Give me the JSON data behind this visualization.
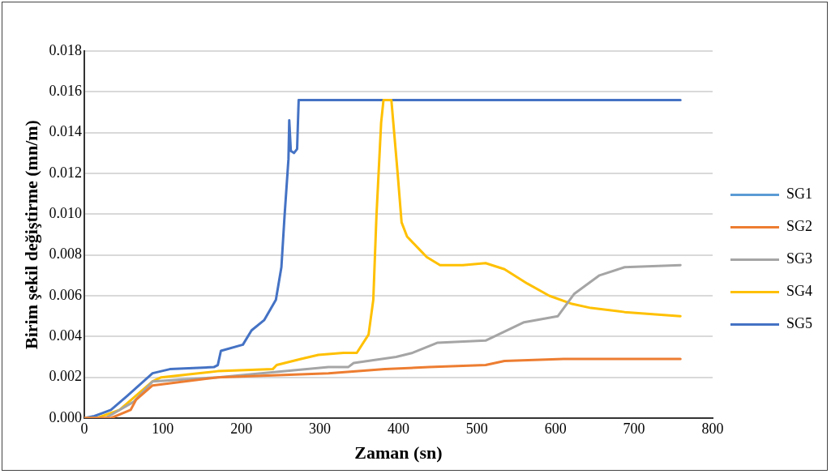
{
  "chart_data": {
    "type": "line",
    "xlabel": "Zaman (sn)",
    "ylabel": "Birim şekil değiştirme (mn/m)",
    "xlim": [
      0,
      800
    ],
    "xticks": [
      0,
      100,
      200,
      300,
      400,
      500,
      600,
      700,
      800
    ],
    "ylim": [
      0,
      0.018
    ],
    "yticks": [
      {
        "value": 0,
        "label": "0.000"
      },
      {
        "value": 0.002,
        "label": "0.002"
      },
      {
        "value": 0.004,
        "label": "0.004"
      },
      {
        "value": 0.006,
        "label": "0.006"
      },
      {
        "value": 0.008,
        "label": "0.008"
      },
      {
        "value": 0.01,
        "label": "0.010"
      },
      {
        "value": 0.012,
        "label": "0.012"
      },
      {
        "value": 0.014,
        "label": "0.014"
      },
      {
        "value": 0.016,
        "label": "0.016"
      },
      {
        "value": 0.018,
        "label": "0.018"
      }
    ],
    "grid": "y",
    "legend": "right",
    "marker": "none",
    "line_style": "solid",
    "series": [
      {
        "name": "SG1",
        "color": "#5b9bd5"
      },
      {
        "name": "SG2",
        "color": "#ed7d31",
        "x": [
          0,
          34,
          59,
          66,
          87,
          170,
          311,
          383,
          439,
          511,
          535,
          610,
          759
        ],
        "values": [
          0,
          0,
          0.0004,
          0.0009,
          0.0016,
          0.002,
          0.0022,
          0.0024,
          0.0025,
          0.0026,
          0.0028,
          0.0029,
          0.0029
        ]
      },
      {
        "name": "SG3",
        "color": "#a5a5a5",
        "x": [
          0,
          27,
          63,
          87,
          170,
          311,
          336,
          343,
          397,
          418,
          450,
          511,
          560,
          603,
          624,
          656,
          688,
          759
        ],
        "values": [
          0,
          0,
          0.0008,
          0.0018,
          0.002,
          0.0025,
          0.0025,
          0.0027,
          0.003,
          0.0032,
          0.0037,
          0.0038,
          0.0047,
          0.005,
          0.0061,
          0.007,
          0.0074,
          0.0075
        ]
      },
      {
        "name": "SG4",
        "color": "#ffc000",
        "x": [
          0,
          16,
          45,
          87,
          98,
          170,
          240,
          245,
          276,
          298,
          330,
          347,
          362,
          368,
          372,
          378,
          381,
          391,
          399,
          404,
          411,
          426,
          436,
          453,
          482,
          511,
          535,
          564,
          592,
          621,
          645,
          688,
          759
        ],
        "values": [
          0,
          0,
          0.0004,
          0.0018,
          0.002,
          0.0023,
          0.0024,
          0.0026,
          0.0029,
          0.0031,
          0.0032,
          0.0032,
          0.0041,
          0.0058,
          0.0099,
          0.0145,
          0.0156,
          0.0156,
          0.012,
          0.0096,
          0.0089,
          0.0083,
          0.0079,
          0.0075,
          0.0075,
          0.0076,
          0.0073,
          0.0066,
          0.006,
          0.0056,
          0.0054,
          0.0052,
          0.005
        ]
      },
      {
        "name": "SG5",
        "color": "#4472c4",
        "x": [
          0,
          13,
          34,
          55,
          87,
          109,
          165,
          170,
          174,
          202,
          213,
          229,
          244,
          251,
          255,
          260,
          261,
          263,
          267,
          271,
          273,
          759
        ],
        "values": [
          0,
          0.0001,
          0.0004,
          0.0011,
          0.0022,
          0.0024,
          0.0025,
          0.0026,
          0.0033,
          0.0036,
          0.0043,
          0.0048,
          0.0058,
          0.0074,
          0.0099,
          0.0127,
          0.0146,
          0.0131,
          0.013,
          0.0132,
          0.0156,
          0.0156
        ]
      }
    ]
  }
}
